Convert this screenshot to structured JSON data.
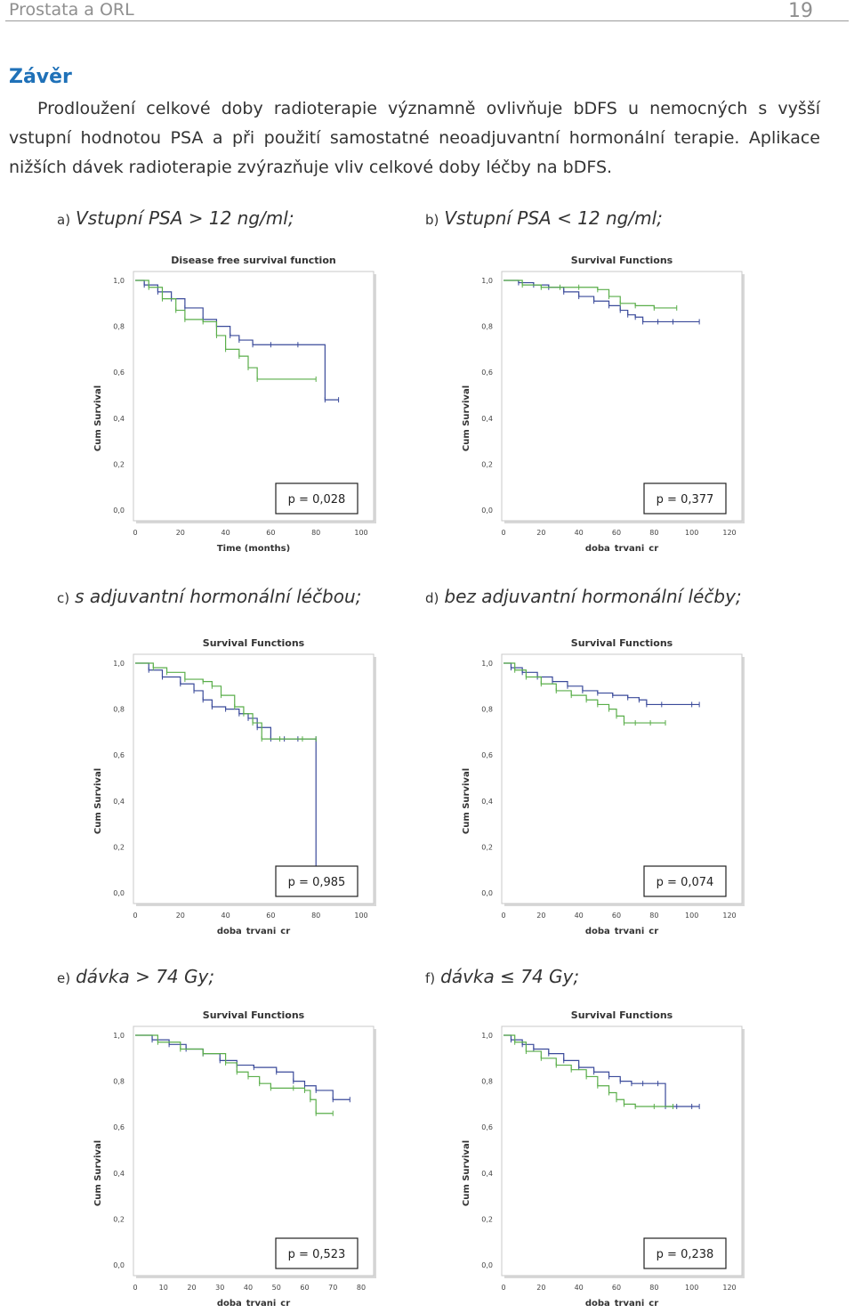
{
  "header": {
    "left": "Prostata a ORL",
    "page_number": "19"
  },
  "section": {
    "heading": "Závěr",
    "paragraph": "Prodloužení celkové doby radioterapie významně ovlivňuje bDFS u nemocných s vyšší vstupní hodnotou PSA a při použití samostatné neoadjuvantní hormonální terapie. Aplikace nižších dávek radioterapie zvýrazňuje vliv celkové doby léčby na bDFS."
  },
  "panels": [
    {
      "letter": "a)",
      "caption": "Vstupní PSA > 12 ng/ml;",
      "p_value": "p = 0,028"
    },
    {
      "letter": "b)",
      "caption": "Vstupní PSA < 12 ng/ml;",
      "p_value": "p = 0,377"
    },
    {
      "letter": "c)",
      "caption": "s adjuvantní hormonální léčbou;",
      "p_value": "p = 0,985"
    },
    {
      "letter": "d)",
      "caption": "bez adjuvantní hormonální léčby;",
      "p_value": "p = 0,074"
    },
    {
      "letter": "e)",
      "caption": "dávka > 74 Gy;",
      "p_value": "p = 0,523"
    },
    {
      "letter": "f)",
      "caption": "dávka ≤ 74 Gy;",
      "p_value": "p = 0,238"
    }
  ],
  "colors": {
    "blue_series": "#3a4a9a",
    "green_series": "#5aae4a",
    "heading": "#1f71b8"
  },
  "chart_data": [
    {
      "type": "line",
      "title": "Disease free survival function",
      "xlabel": "Time (months)",
      "ylabel": "Cum Survival",
      "xlim": [
        0,
        100
      ],
      "ylim": [
        0,
        1
      ],
      "xticks": [
        0,
        20,
        40,
        60,
        80,
        100
      ],
      "yticks": [
        "0,0",
        "0,2",
        "0,4",
        "0,6",
        "0,8",
        "1,0"
      ],
      "series": [
        {
          "x": [
            0,
            4,
            10,
            16,
            22,
            30,
            36,
            42,
            46,
            52,
            60,
            72,
            84,
            90
          ],
          "y": [
            1.0,
            0.98,
            0.95,
            0.92,
            0.88,
            0.83,
            0.8,
            0.76,
            0.74,
            0.72,
            0.72,
            0.72,
            0.48,
            0.48
          ]
        },
        {
          "x": [
            0,
            6,
            12,
            18,
            22,
            30,
            36,
            40,
            46,
            50,
            54,
            80
          ],
          "y": [
            1.0,
            0.97,
            0.92,
            0.87,
            0.83,
            0.82,
            0.76,
            0.7,
            0.67,
            0.62,
            0.57,
            0.57
          ]
        }
      ]
    },
    {
      "type": "line",
      "title": "Survival Functions",
      "xlabel": "doba_trvani_cr",
      "ylabel": "Cum Survival",
      "xlim": [
        0,
        120
      ],
      "ylim": [
        0,
        1
      ],
      "xticks": [
        0,
        20,
        40,
        60,
        80,
        100,
        120
      ],
      "yticks": [
        "0,0",
        "0,2",
        "0,4",
        "0,6",
        "0,8",
        "1,0"
      ],
      "series": [
        {
          "x": [
            0,
            8,
            16,
            24,
            32,
            40,
            48,
            56,
            62,
            66,
            70,
            74,
            82,
            90,
            104
          ],
          "y": [
            1.0,
            0.99,
            0.98,
            0.97,
            0.95,
            0.93,
            0.91,
            0.89,
            0.87,
            0.85,
            0.84,
            0.82,
            0.82,
            0.82,
            0.82
          ]
        },
        {
          "x": [
            0,
            10,
            20,
            30,
            40,
            50,
            56,
            62,
            70,
            80,
            92
          ],
          "y": [
            1.0,
            0.98,
            0.97,
            0.97,
            0.97,
            0.96,
            0.93,
            0.9,
            0.89,
            0.88,
            0.88
          ]
        }
      ]
    },
    {
      "type": "line",
      "title": "Survival Functions",
      "xlabel": "doba_trvani_cr",
      "ylabel": "Cum Survival",
      "xlim": [
        0,
        100
      ],
      "ylim": [
        0,
        1
      ],
      "xticks": [
        0,
        20,
        40,
        60,
        80,
        100
      ],
      "yticks": [
        "0,0",
        "0,2",
        "0,4",
        "0,6",
        "0,8",
        "1,0"
      ],
      "series": [
        {
          "x": [
            0,
            6,
            12,
            20,
            26,
            30,
            34,
            40,
            46,
            50,
            54,
            60,
            66,
            72,
            80,
            80,
            84
          ],
          "y": [
            1.0,
            0.97,
            0.94,
            0.91,
            0.88,
            0.84,
            0.81,
            0.8,
            0.78,
            0.76,
            0.72,
            0.67,
            0.67,
            0.67,
            0.67,
            0.0,
            0.0
          ]
        },
        {
          "x": [
            0,
            8,
            14,
            22,
            30,
            34,
            38,
            44,
            48,
            52,
            56,
            64,
            74,
            80
          ],
          "y": [
            1.0,
            0.98,
            0.96,
            0.93,
            0.92,
            0.9,
            0.86,
            0.81,
            0.78,
            0.74,
            0.67,
            0.67,
            0.67,
            0.67
          ]
        }
      ]
    },
    {
      "type": "line",
      "title": "Survival Functions",
      "xlabel": "doba_trvani_cr",
      "ylabel": "Cum Survival",
      "xlim": [
        0,
        120
      ],
      "ylim": [
        0,
        1
      ],
      "xticks": [
        0,
        20,
        40,
        60,
        80,
        100,
        120
      ],
      "yticks": [
        "0,0",
        "0,2",
        "0,4",
        "0,6",
        "0,8",
        "1,0"
      ],
      "series": [
        {
          "x": [
            0,
            4,
            10,
            18,
            26,
            34,
            42,
            50,
            58,
            66,
            72,
            76,
            84,
            100,
            104
          ],
          "y": [
            1.0,
            0.98,
            0.96,
            0.94,
            0.92,
            0.9,
            0.88,
            0.87,
            0.86,
            0.85,
            0.84,
            0.82,
            0.82,
            0.82,
            0.82
          ]
        },
        {
          "x": [
            0,
            6,
            12,
            20,
            28,
            36,
            44,
            50,
            56,
            60,
            64,
            70,
            78,
            86
          ],
          "y": [
            1.0,
            0.97,
            0.94,
            0.91,
            0.88,
            0.86,
            0.84,
            0.82,
            0.8,
            0.77,
            0.74,
            0.74,
            0.74,
            0.74
          ]
        }
      ]
    },
    {
      "type": "line",
      "title": "Survival Functions",
      "xlabel": "doba_trvani_cr",
      "ylabel": "Cum Survival",
      "xlim": [
        0,
        80
      ],
      "ylim": [
        0,
        1
      ],
      "xticks": [
        0,
        10,
        20,
        30,
        40,
        50,
        60,
        70,
        80
      ],
      "yticks": [
        "0,0",
        "0,2",
        "0,4",
        "0,6",
        "0,8",
        "1,0"
      ],
      "series": [
        {
          "x": [
            0,
            6,
            12,
            18,
            24,
            30,
            36,
            42,
            50,
            56,
            60,
            64,
            70,
            76
          ],
          "y": [
            1.0,
            0.98,
            0.96,
            0.94,
            0.92,
            0.89,
            0.87,
            0.86,
            0.84,
            0.8,
            0.78,
            0.76,
            0.72,
            0.72
          ]
        },
        {
          "x": [
            0,
            8,
            16,
            24,
            32,
            36,
            40,
            44,
            48,
            56,
            60,
            62,
            64,
            70
          ],
          "y": [
            1.0,
            0.97,
            0.94,
            0.92,
            0.88,
            0.84,
            0.82,
            0.79,
            0.77,
            0.77,
            0.76,
            0.72,
            0.66,
            0.66
          ]
        }
      ]
    },
    {
      "type": "line",
      "title": "Survival Functions",
      "xlabel": "doba_trvani_cr",
      "ylabel": "Cum Survival",
      "xlim": [
        0,
        120
      ],
      "ylim": [
        0,
        1
      ],
      "xticks": [
        0,
        20,
        40,
        60,
        80,
        100,
        120
      ],
      "yticks": [
        "0,0",
        "0,2",
        "0,4",
        "0,6",
        "0,8",
        "1,0"
      ],
      "series": [
        {
          "x": [
            0,
            4,
            10,
            16,
            24,
            32,
            40,
            48,
            56,
            62,
            68,
            74,
            82,
            86,
            92,
            100,
            104
          ],
          "y": [
            1.0,
            0.98,
            0.96,
            0.94,
            0.92,
            0.89,
            0.86,
            0.84,
            0.82,
            0.8,
            0.79,
            0.79,
            0.79,
            0.69,
            0.69,
            0.69,
            0.69
          ]
        },
        {
          "x": [
            0,
            6,
            12,
            20,
            28,
            36,
            44,
            50,
            56,
            60,
            64,
            70,
            80,
            90
          ],
          "y": [
            1.0,
            0.97,
            0.93,
            0.9,
            0.87,
            0.85,
            0.82,
            0.78,
            0.75,
            0.72,
            0.7,
            0.69,
            0.69,
            0.69
          ]
        }
      ]
    }
  ]
}
